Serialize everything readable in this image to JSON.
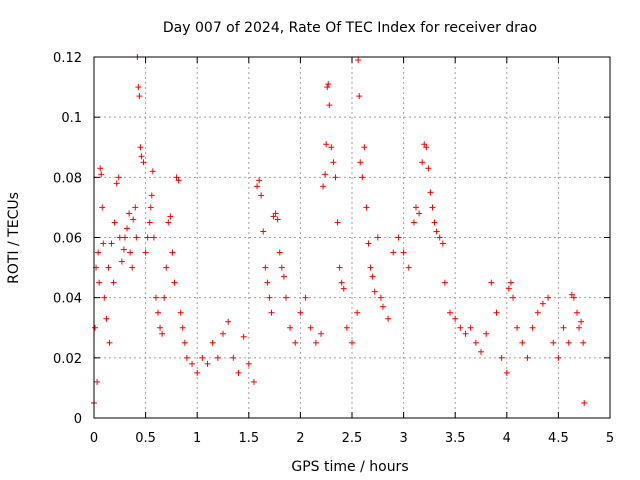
{
  "chart_data": {
    "type": "scatter",
    "title": "Day 007 of 2024, Rate Of TEC Index for receiver drao",
    "xlabel": "GPS time / hours",
    "ylabel": "ROTI / TECUs",
    "xlim": [
      0,
      5
    ],
    "ylim": [
      0,
      0.12
    ],
    "xticks": [
      0,
      0.5,
      1,
      1.5,
      2,
      2.5,
      3,
      3.5,
      4,
      4.5,
      5
    ],
    "xtick_labels": [
      "0",
      "0.5",
      "1",
      "1.5",
      "2",
      "2.5",
      "3",
      "3.5",
      "4",
      "4.5",
      "5"
    ],
    "yticks": [
      0,
      0.02,
      0.04,
      0.06,
      0.08,
      0.1,
      0.12
    ],
    "ytick_labels": [
      "0",
      "0.02",
      "0.04",
      "0.06",
      "0.08",
      "0.1",
      "0.12"
    ],
    "grid": true,
    "marker": "+",
    "series": [
      {
        "name": "ROTI",
        "color": "#ff0000",
        "points": [
          [
            0.0,
            0.005
          ],
          [
            0.01,
            0.03
          ],
          [
            0.02,
            0.05
          ],
          [
            0.03,
            0.012
          ],
          [
            0.04,
            0.055
          ],
          [
            0.05,
            0.045
          ],
          [
            0.06,
            0.083
          ],
          [
            0.07,
            0.081
          ],
          [
            0.08,
            0.07
          ],
          [
            0.09,
            0.058
          ],
          [
            0.1,
            0.04
          ],
          [
            0.12,
            0.033
          ],
          [
            0.14,
            0.05
          ],
          [
            0.15,
            0.025
          ],
          [
            0.17,
            0.058
          ],
          [
            0.19,
            0.045
          ],
          [
            0.2,
            0.065
          ],
          [
            0.22,
            0.078
          ],
          [
            0.24,
            0.08
          ],
          [
            0.25,
            0.06
          ],
          [
            0.27,
            0.052
          ],
          [
            0.29,
            0.056
          ],
          [
            0.3,
            0.06
          ],
          [
            0.32,
            0.063
          ],
          [
            0.34,
            0.068
          ],
          [
            0.35,
            0.055
          ],
          [
            0.37,
            0.05
          ],
          [
            0.38,
            0.066
          ],
          [
            0.4,
            0.07
          ],
          [
            0.41,
            0.06
          ],
          [
            0.42,
            0.12
          ],
          [
            0.43,
            0.11
          ],
          [
            0.44,
            0.107
          ],
          [
            0.45,
            0.09
          ],
          [
            0.46,
            0.087
          ],
          [
            0.48,
            0.085
          ],
          [
            0.5,
            0.055
          ],
          [
            0.52,
            0.06
          ],
          [
            0.54,
            0.065
          ],
          [
            0.55,
            0.07
          ],
          [
            0.56,
            0.074
          ],
          [
            0.57,
            0.082
          ],
          [
            0.58,
            0.06
          ],
          [
            0.6,
            0.04
          ],
          [
            0.62,
            0.035
          ],
          [
            0.64,
            0.03
          ],
          [
            0.66,
            0.028
          ],
          [
            0.68,
            0.04
          ],
          [
            0.7,
            0.05
          ],
          [
            0.72,
            0.065
          ],
          [
            0.74,
            0.067
          ],
          [
            0.76,
            0.055
          ],
          [
            0.78,
            0.045
          ],
          [
            0.8,
            0.08
          ],
          [
            0.82,
            0.079
          ],
          [
            0.84,
            0.035
          ],
          [
            0.86,
            0.03
          ],
          [
            0.88,
            0.025
          ],
          [
            0.9,
            0.02
          ],
          [
            0.95,
            0.018
          ],
          [
            1.0,
            0.015
          ],
          [
            1.05,
            0.02
          ],
          [
            1.1,
            0.018
          ],
          [
            1.15,
            0.025
          ],
          [
            1.2,
            0.02
          ],
          [
            1.25,
            0.028
          ],
          [
            1.3,
            0.032
          ],
          [
            1.35,
            0.02
          ],
          [
            1.4,
            0.015
          ],
          [
            1.45,
            0.027
          ],
          [
            1.5,
            0.018
          ],
          [
            1.55,
            0.012
          ],
          [
            1.58,
            0.077
          ],
          [
            1.6,
            0.079
          ],
          [
            1.62,
            0.074
          ],
          [
            1.64,
            0.062
          ],
          [
            1.66,
            0.05
          ],
          [
            1.68,
            0.045
          ],
          [
            1.7,
            0.04
          ],
          [
            1.72,
            0.035
          ],
          [
            1.74,
            0.067
          ],
          [
            1.76,
            0.068
          ],
          [
            1.78,
            0.066
          ],
          [
            1.8,
            0.055
          ],
          [
            1.82,
            0.05
          ],
          [
            1.84,
            0.047
          ],
          [
            1.86,
            0.04
          ],
          [
            1.9,
            0.03
          ],
          [
            1.95,
            0.025
          ],
          [
            2.0,
            0.035
          ],
          [
            2.05,
            0.04
          ],
          [
            2.1,
            0.03
          ],
          [
            2.15,
            0.025
          ],
          [
            2.2,
            0.028
          ],
          [
            2.22,
            0.077
          ],
          [
            2.24,
            0.081
          ],
          [
            2.25,
            0.091
          ],
          [
            2.26,
            0.11
          ],
          [
            2.27,
            0.111
          ],
          [
            2.28,
            0.104
          ],
          [
            2.3,
            0.09
          ],
          [
            2.32,
            0.085
          ],
          [
            2.34,
            0.08
          ],
          [
            2.36,
            0.065
          ],
          [
            2.38,
            0.05
          ],
          [
            2.4,
            0.045
          ],
          [
            2.42,
            0.043
          ],
          [
            2.45,
            0.03
          ],
          [
            2.5,
            0.025
          ],
          [
            2.55,
            0.035
          ],
          [
            2.56,
            0.119
          ],
          [
            2.57,
            0.107
          ],
          [
            2.58,
            0.085
          ],
          [
            2.6,
            0.08
          ],
          [
            2.62,
            0.09
          ],
          [
            2.64,
            0.07
          ],
          [
            2.66,
            0.058
          ],
          [
            2.68,
            0.05
          ],
          [
            2.7,
            0.047
          ],
          [
            2.72,
            0.042
          ],
          [
            2.75,
            0.06
          ],
          [
            2.78,
            0.04
          ],
          [
            2.8,
            0.037
          ],
          [
            2.85,
            0.033
          ],
          [
            2.9,
            0.055
          ],
          [
            2.95,
            0.06
          ],
          [
            3.0,
            0.055
          ],
          [
            3.05,
            0.05
          ],
          [
            3.1,
            0.065
          ],
          [
            3.12,
            0.07
          ],
          [
            3.15,
            0.068
          ],
          [
            3.18,
            0.085
          ],
          [
            3.2,
            0.091
          ],
          [
            3.22,
            0.09
          ],
          [
            3.24,
            0.083
          ],
          [
            3.26,
            0.075
          ],
          [
            3.28,
            0.07
          ],
          [
            3.3,
            0.065
          ],
          [
            3.32,
            0.062
          ],
          [
            3.35,
            0.06
          ],
          [
            3.38,
            0.058
          ],
          [
            3.4,
            0.045
          ],
          [
            3.45,
            0.035
          ],
          [
            3.5,
            0.033
          ],
          [
            3.55,
            0.03
          ],
          [
            3.6,
            0.028
          ],
          [
            3.65,
            0.03
          ],
          [
            3.7,
            0.025
          ],
          [
            3.75,
            0.022
          ],
          [
            3.8,
            0.028
          ],
          [
            3.85,
            0.045
          ],
          [
            3.9,
            0.035
          ],
          [
            3.95,
            0.02
          ],
          [
            4.0,
            0.015
          ],
          [
            4.02,
            0.043
          ],
          [
            4.04,
            0.045
          ],
          [
            4.06,
            0.04
          ],
          [
            4.1,
            0.03
          ],
          [
            4.15,
            0.025
          ],
          [
            4.2,
            0.02
          ],
          [
            4.25,
            0.03
          ],
          [
            4.3,
            0.035
          ],
          [
            4.35,
            0.038
          ],
          [
            4.4,
            0.04
          ],
          [
            4.45,
            0.025
          ],
          [
            4.5,
            0.02
          ],
          [
            4.55,
            0.03
          ],
          [
            4.6,
            0.025
          ],
          [
            4.63,
            0.041
          ],
          [
            4.65,
            0.04
          ],
          [
            4.68,
            0.035
          ],
          [
            4.7,
            0.03
          ],
          [
            4.72,
            0.032
          ],
          [
            4.74,
            0.025
          ],
          [
            4.75,
            0.005
          ]
        ]
      }
    ]
  }
}
